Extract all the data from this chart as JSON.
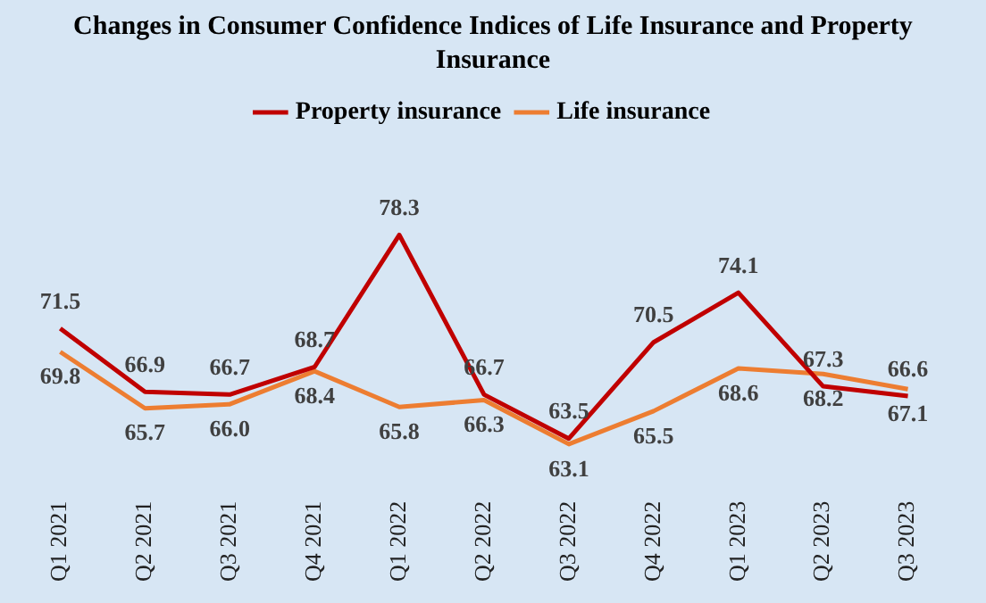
{
  "chart_data": {
    "type": "line",
    "title": "Changes in Consumer Confidence Indices of Life Insurance and Property Insurance",
    "categories": [
      "Q1 2021",
      "Q2 2021",
      "Q3 2021",
      "Q4 2021",
      "Q1 2022",
      "Q2 2022",
      "Q3 2022",
      "Q4 2022",
      "Q1 2023",
      "Q2 2023",
      "Q3 2023"
    ],
    "series": [
      {
        "name": "Property insurance",
        "color": "#c00000",
        "values": [
          71.5,
          66.9,
          66.7,
          68.7,
          78.3,
          66.7,
          63.5,
          70.5,
          74.1,
          67.3,
          66.6
        ],
        "value_labels": [
          "71.5",
          "66.9",
          "66.7",
          "68.7",
          "78.3",
          "66.7",
          "63.5",
          "70.5",
          "74.1",
          "67.3",
          "66.6"
        ]
      },
      {
        "name": "Life insurance",
        "color": "#ed7d31",
        "values": [
          69.8,
          65.7,
          66.0,
          68.4,
          65.8,
          66.3,
          63.1,
          65.5,
          68.6,
          68.2,
          67.1
        ],
        "value_labels": [
          "69.8",
          "65.7",
          "66.0",
          "68.4",
          "65.8",
          "66.3",
          "63.1",
          "65.5",
          "68.6",
          "68.2",
          "67.1"
        ]
      }
    ],
    "tick_labels": "x",
    "grid": false,
    "legend": "top",
    "marker": "none",
    "line_style": "solid"
  }
}
